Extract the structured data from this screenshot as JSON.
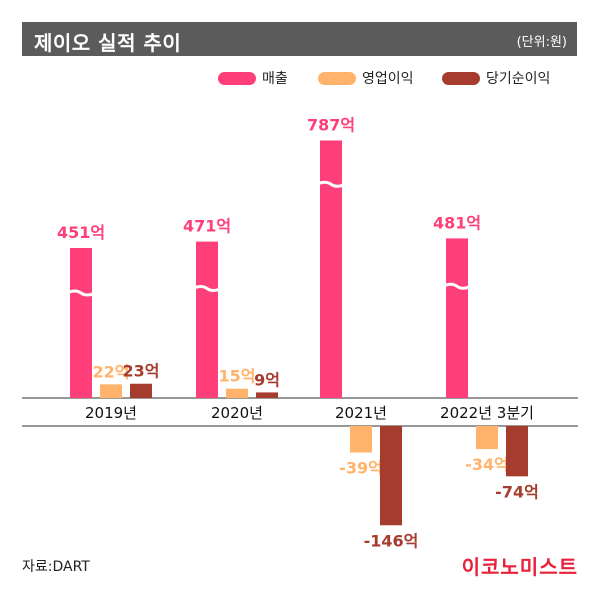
{
  "header": {
    "title": "제이오 실적 추이",
    "unit": "(단위:원)"
  },
  "footer": {
    "source": "자료:DART",
    "brand": "이코노미스트"
  },
  "colors": {
    "revenue": "#ff3f7a",
    "operating": "#ffb36b",
    "net": "#a63c2e",
    "title_bg": "#5b5b5b",
    "brand": "#e8203a"
  },
  "chart_data": {
    "type": "bar",
    "title": "제이오 실적 추이",
    "unit": "(단위:원)",
    "categories": [
      "2019년",
      "2020년",
      "2021년",
      "2022년 3분기"
    ],
    "series": [
      {
        "name": "매출",
        "values": [
          451,
          471,
          787,
          481
        ],
        "labels": [
          "451억",
          "471억",
          "787억",
          "481억"
        ]
      },
      {
        "name": "영업이익",
        "values": [
          22,
          15,
          -39,
          -34
        ],
        "labels": [
          "22억",
          "15억",
          "-39억",
          "-34억"
        ]
      },
      {
        "name": "당기순이익",
        "values": [
          23,
          9,
          -146,
          -74
        ],
        "labels": [
          "23억",
          "9억",
          "-146억",
          "-74억"
        ]
      }
    ],
    "legend_position": "top-right",
    "axis_break": true,
    "grid": false
  }
}
